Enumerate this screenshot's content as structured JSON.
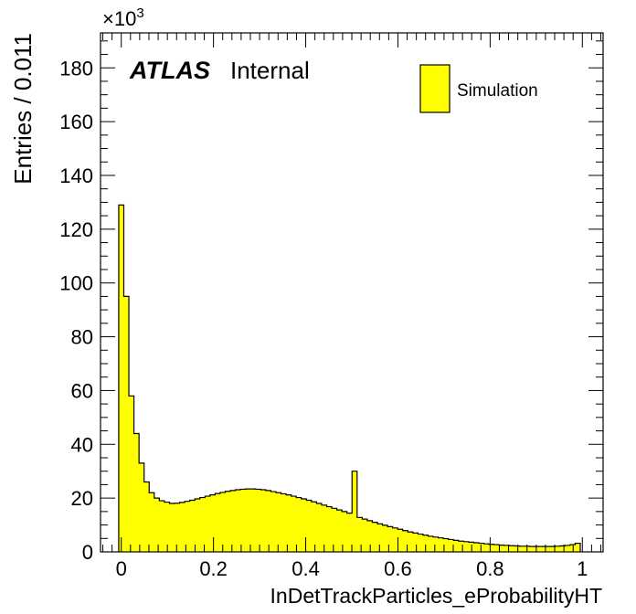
{
  "chart_data": {
    "type": "bar",
    "histogram": true,
    "xlabel": "InDetTrackParticles_eProbabilityHT",
    "ylabel": "Entries / 0.011",
    "y_multiplier": "×10",
    "y_multiplier_exp": "3",
    "xlim": [
      -0.045,
      1.045
    ],
    "ylim": [
      0,
      193
    ],
    "x_ticks": [
      "0",
      "0.2",
      "0.4",
      "0.6",
      "0.8",
      "1"
    ],
    "y_ticks": [
      "0",
      "20",
      "40",
      "60",
      "80",
      "100",
      "120",
      "140",
      "160",
      "180"
    ],
    "atlas_label": "ATLAS",
    "atlas_sublabel": "Internal",
    "series": [
      {
        "name": "Simulation",
        "color": "#ffff00",
        "bin_width": 0.011,
        "x_start": -0.0055,
        "values": [
          129,
          95,
          58,
          44,
          33,
          26,
          22,
          20,
          19,
          18.5,
          18,
          18.1,
          18.4,
          18.8,
          19.2,
          19.7,
          20.2,
          20.7,
          21.2,
          21.7,
          22.1,
          22.5,
          22.8,
          23.1,
          23.3,
          23.4,
          23.4,
          23.3,
          23.1,
          22.8,
          22.4,
          22.0,
          21.6,
          21.2,
          20.7,
          20.2,
          19.7,
          19.2,
          18.6,
          18.0,
          17.4,
          16.8,
          16.2,
          15.6,
          15.0,
          14.4,
          30,
          12.8,
          12.2,
          11.6,
          11.0,
          10.4,
          9.9,
          9.4,
          8.9,
          8.4,
          7.9,
          7.4,
          7.0,
          6.6,
          6.2,
          5.8,
          5.5,
          5.2,
          4.9,
          4.6,
          4.3,
          4.0,
          3.8,
          3.6,
          3.4,
          3.2,
          3.0,
          2.8,
          2.7,
          2.5,
          2.4,
          2.3,
          2.2,
          2.1,
          2.1,
          2.0,
          2.0,
          2.0,
          2.0,
          2.0,
          2.1,
          2.2,
          2.4,
          2.7,
          3.2
        ]
      }
    ],
    "legend": {
      "entries": [
        "Simulation"
      ],
      "position": "top-right"
    },
    "grid": false
  }
}
